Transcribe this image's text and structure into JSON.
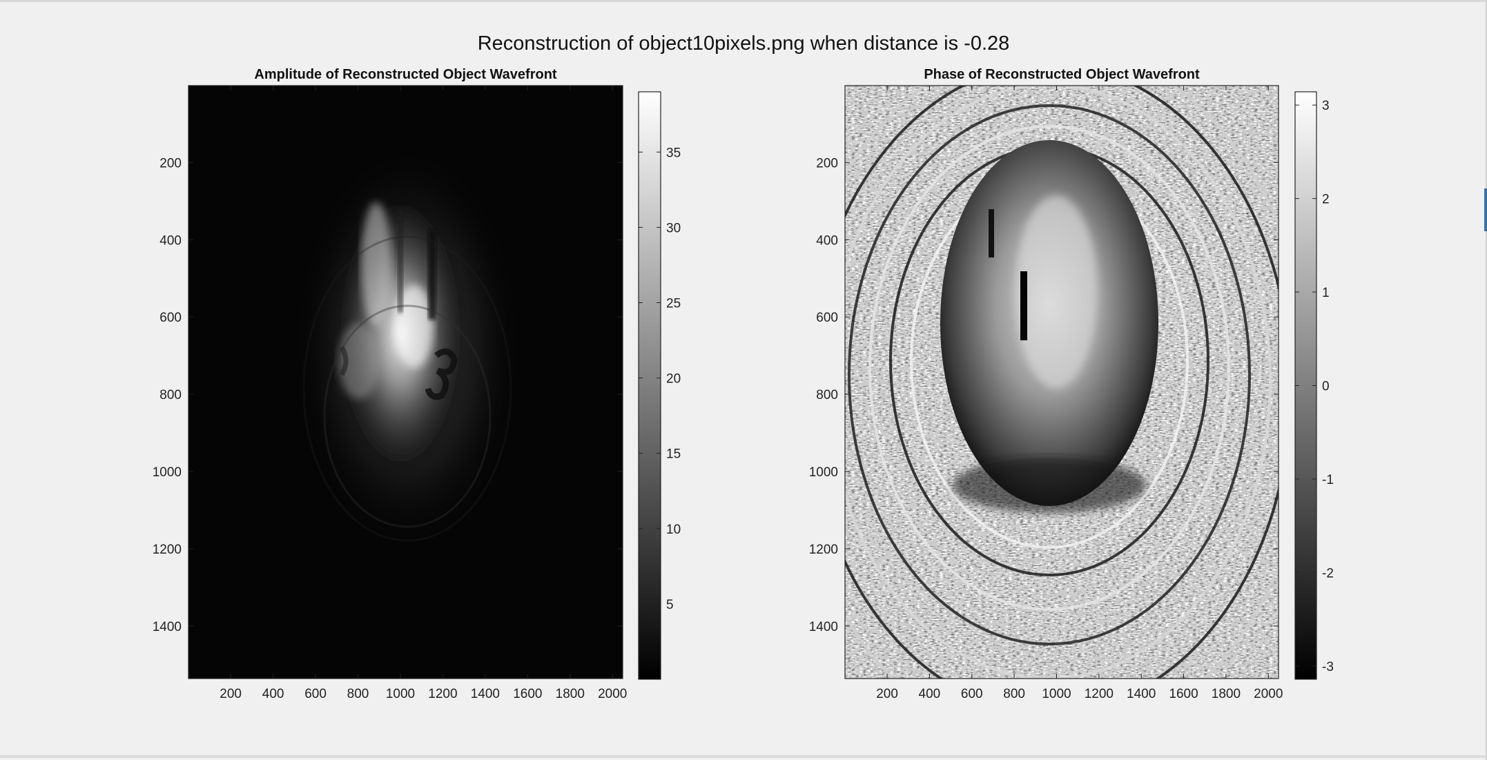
{
  "figure": {
    "suptitle": "Reconstruction of object10pixels.png when distance is -0.28"
  },
  "chart_data": [
    {
      "type": "heatmap",
      "title": "Amplitude of Reconstructed Object Wavefront",
      "colormap": "gray",
      "xlim": [
        1,
        2048
      ],
      "ylim": [
        1,
        1536
      ],
      "y_reversed": true,
      "xticks": [
        200,
        400,
        600,
        800,
        1000,
        1200,
        1400,
        1600,
        1800,
        2000
      ],
      "yticks": [
        200,
        400,
        600,
        800,
        1000,
        1200,
        1400
      ],
      "colorbar": {
        "clim": [
          0,
          39
        ],
        "ticks": [
          5,
          10,
          15,
          20,
          25,
          30,
          35
        ]
      }
    },
    {
      "type": "heatmap",
      "title": "Phase of Reconstructed Object Wavefront",
      "colormap": "gray",
      "xlim": [
        1,
        2048
      ],
      "ylim": [
        1,
        1536
      ],
      "y_reversed": true,
      "xticks": [
        200,
        400,
        600,
        800,
        1000,
        1200,
        1400,
        1600,
        1800,
        2000
      ],
      "yticks": [
        200,
        400,
        600,
        800,
        1000,
        1200,
        1400
      ],
      "colorbar": {
        "clim": [
          -3.1416,
          3.1416
        ],
        "ticks": [
          -3,
          -2,
          -1,
          0,
          1,
          2,
          3
        ]
      }
    }
  ]
}
